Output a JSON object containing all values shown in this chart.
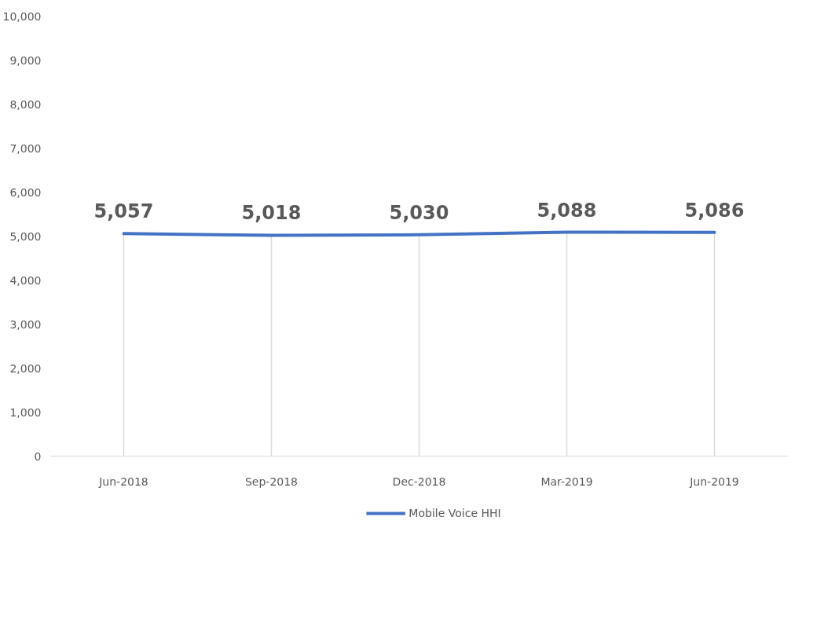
{
  "chart_data": {
    "type": "line",
    "categories": [
      "Jun-2018",
      "Sep-2018",
      "Dec-2018",
      "Mar-2019",
      "Jun-2019"
    ],
    "series": [
      {
        "name": "Mobile Voice HHI",
        "color": "#4472c4",
        "values": [
          5057,
          5018,
          5030,
          5088,
          5086
        ],
        "value_labels": [
          "5,057",
          "5,018",
          "5,030",
          "5,088",
          "5,086"
        ]
      }
    ],
    "ylim": [
      0,
      10000
    ],
    "yticks": [
      0,
      {
        "value": 1000,
        "label": "1,000"
      },
      {
        "value": 2000,
        "label": "2,000"
      },
      {
        "value": 3000,
        "label": "3,000"
      },
      {
        "value": 4000,
        "label": "4,000"
      },
      {
        "value": 5000,
        "label": "5,000"
      },
      {
        "value": 6000,
        "label": "6,000"
      },
      {
        "value": 7000,
        "label": "7,000"
      },
      {
        "value": 8000,
        "label": "8,000"
      },
      {
        "value": 9000,
        "label": "9,000"
      },
      {
        "value": 10000,
        "label": "10,000"
      }
    ],
    "legend": "bottom",
    "marker": "none",
    "line_style": "solid"
  }
}
